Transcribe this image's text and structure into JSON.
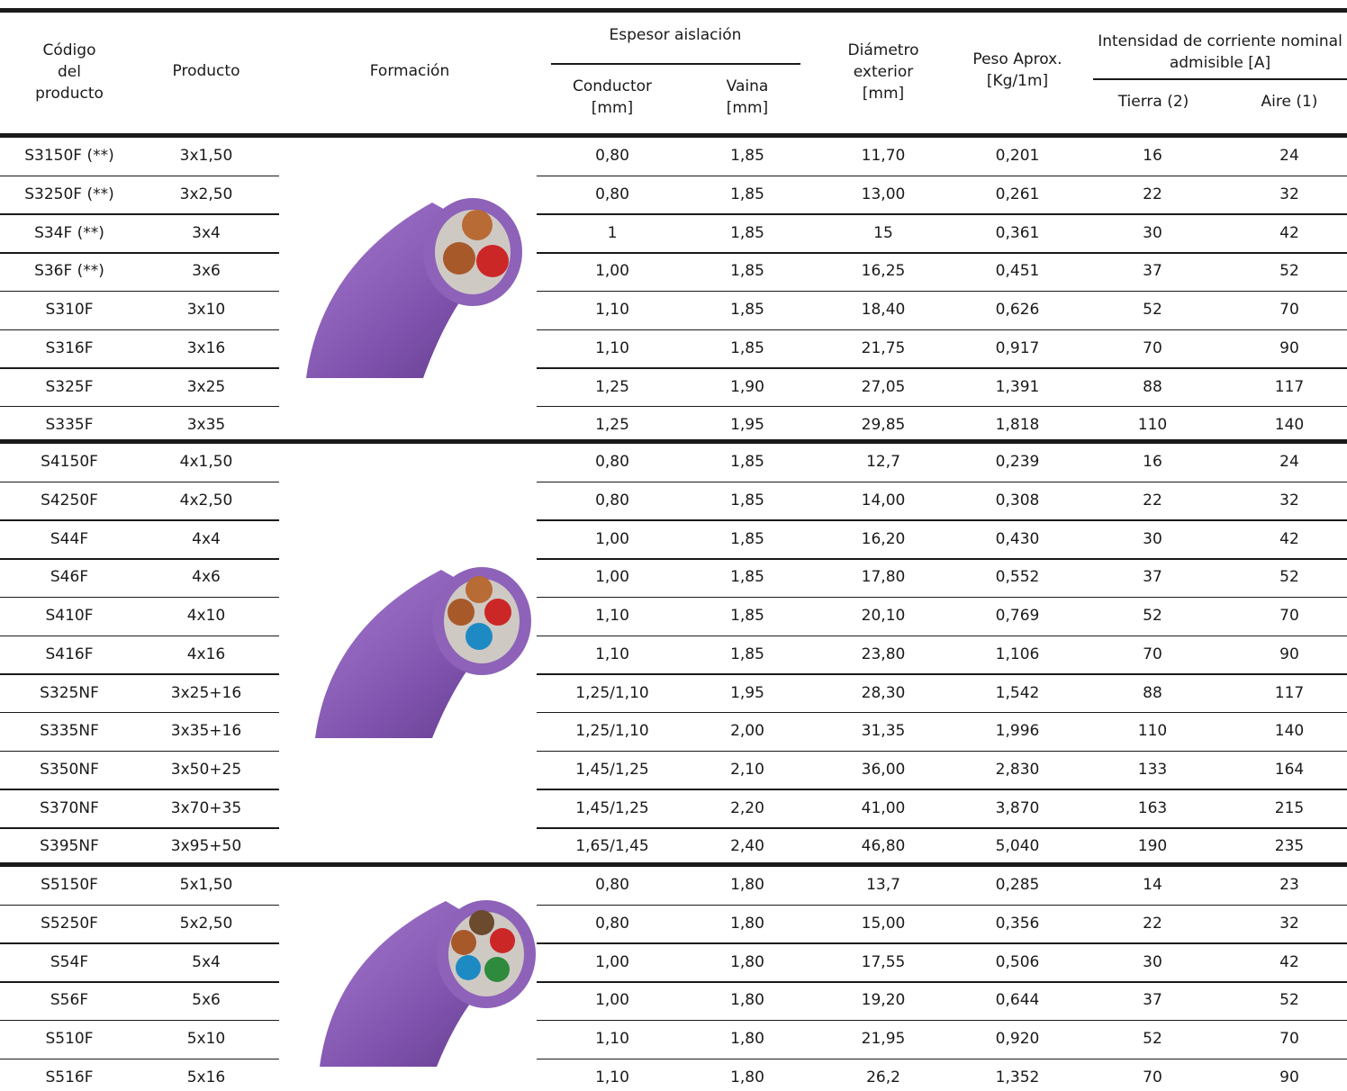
{
  "header": {
    "codigo": "Código del producto",
    "producto": "Producto",
    "formacion": "Formación",
    "espesor": "Espesor aislación",
    "conductor": "Conductor [mm]",
    "vaina": "Vaina [mm]",
    "diametro": "Diámetro exterior [mm]",
    "peso": "Peso Aprox. [Kg/1m]",
    "intensidad": "Intensidad de corriente nominal admisible [A]",
    "tierra": "Tierra (2)",
    "aire": "Aire (1)"
  },
  "groups": [
    [
      [
        "S3150F (**)",
        "3x1,50",
        "0,80",
        "1,85",
        "11,70",
        "0,201",
        "16",
        "24"
      ],
      [
        "S3250F (**)",
        "3x2,50",
        "0,80",
        "1,85",
        "13,00",
        "0,261",
        "22",
        "32"
      ],
      [
        "S34F (**)",
        "3x4",
        "1",
        "1,85",
        "15",
        "0,361",
        "30",
        "42"
      ],
      [
        "S36F (**)",
        "3x6",
        "1,00",
        "1,85",
        "16,25",
        "0,451",
        "37",
        "52"
      ],
      [
        "S310F",
        "3x10",
        "1,10",
        "1,85",
        "18,40",
        "0,626",
        "52",
        "70"
      ],
      [
        "S316F",
        "3x16",
        "1,10",
        "1,85",
        "21,75",
        "0,917",
        "70",
        "90"
      ],
      [
        "S325F",
        "3x25",
        "1,25",
        "1,90",
        "27,05",
        "1,391",
        "88",
        "117"
      ],
      [
        "S335F",
        "3x35",
        "1,25",
        "1,95",
        "29,85",
        "1,818",
        "110",
        "140"
      ]
    ],
    [
      [
        "S4150F",
        "4x1,50",
        "0,80",
        "1,85",
        "12,7",
        "0,239",
        "16",
        "24"
      ],
      [
        "S4250F",
        "4x2,50",
        "0,80",
        "1,85",
        "14,00",
        "0,308",
        "22",
        "32"
      ],
      [
        "S44F",
        "4x4",
        "1,00",
        "1,85",
        "16,20",
        "0,430",
        "30",
        "42"
      ],
      [
        "S46F",
        "4x6",
        "1,00",
        "1,85",
        "17,80",
        "0,552",
        "37",
        "52"
      ],
      [
        "S410F",
        "4x10",
        "1,10",
        "1,85",
        "20,10",
        "0,769",
        "52",
        "70"
      ],
      [
        "S416F",
        "4x16",
        "1,10",
        "1,85",
        "23,80",
        "1,106",
        "70",
        "90"
      ],
      [
        "S325NF",
        "3x25+16",
        "1,25/1,10",
        "1,95",
        "28,30",
        "1,542",
        "88",
        "117"
      ],
      [
        "S335NF",
        "3x35+16",
        "1,25/1,10",
        "2,00",
        "31,35",
        "1,996",
        "110",
        "140"
      ],
      [
        "S350NF",
        "3x50+25",
        "1,45/1,25",
        "2,10",
        "36,00",
        "2,830",
        "133",
        "164"
      ],
      [
        "S370NF",
        "3x70+35",
        "1,45/1,25",
        "2,20",
        "41,00",
        "3,870",
        "163",
        "215"
      ],
      [
        "S395NF",
        "3x95+50",
        "1,65/1,45",
        "2,40",
        "46,80",
        "5,040",
        "190",
        "235"
      ]
    ],
    [
      [
        "S5150F",
        "5x1,50",
        "0,80",
        "1,80",
        "13,7",
        "0,285",
        "14",
        "23"
      ],
      [
        "S5250F",
        "5x2,50",
        "0,80",
        "1,80",
        "15,00",
        "0,356",
        "22",
        "32"
      ],
      [
        "S54F",
        "5x4",
        "1,00",
        "1,80",
        "17,55",
        "0,506",
        "30",
        "42"
      ],
      [
        "S56F",
        "5x6",
        "1,00",
        "1,80",
        "19,20",
        "0,644",
        "37",
        "52"
      ],
      [
        "S510F",
        "5x10",
        "1,10",
        "1,80",
        "21,95",
        "0,920",
        "52",
        "70"
      ],
      [
        "S516F",
        "5x16",
        "1,10",
        "1,80",
        "26,2",
        "1,352",
        "70",
        "90"
      ]
    ]
  ]
}
